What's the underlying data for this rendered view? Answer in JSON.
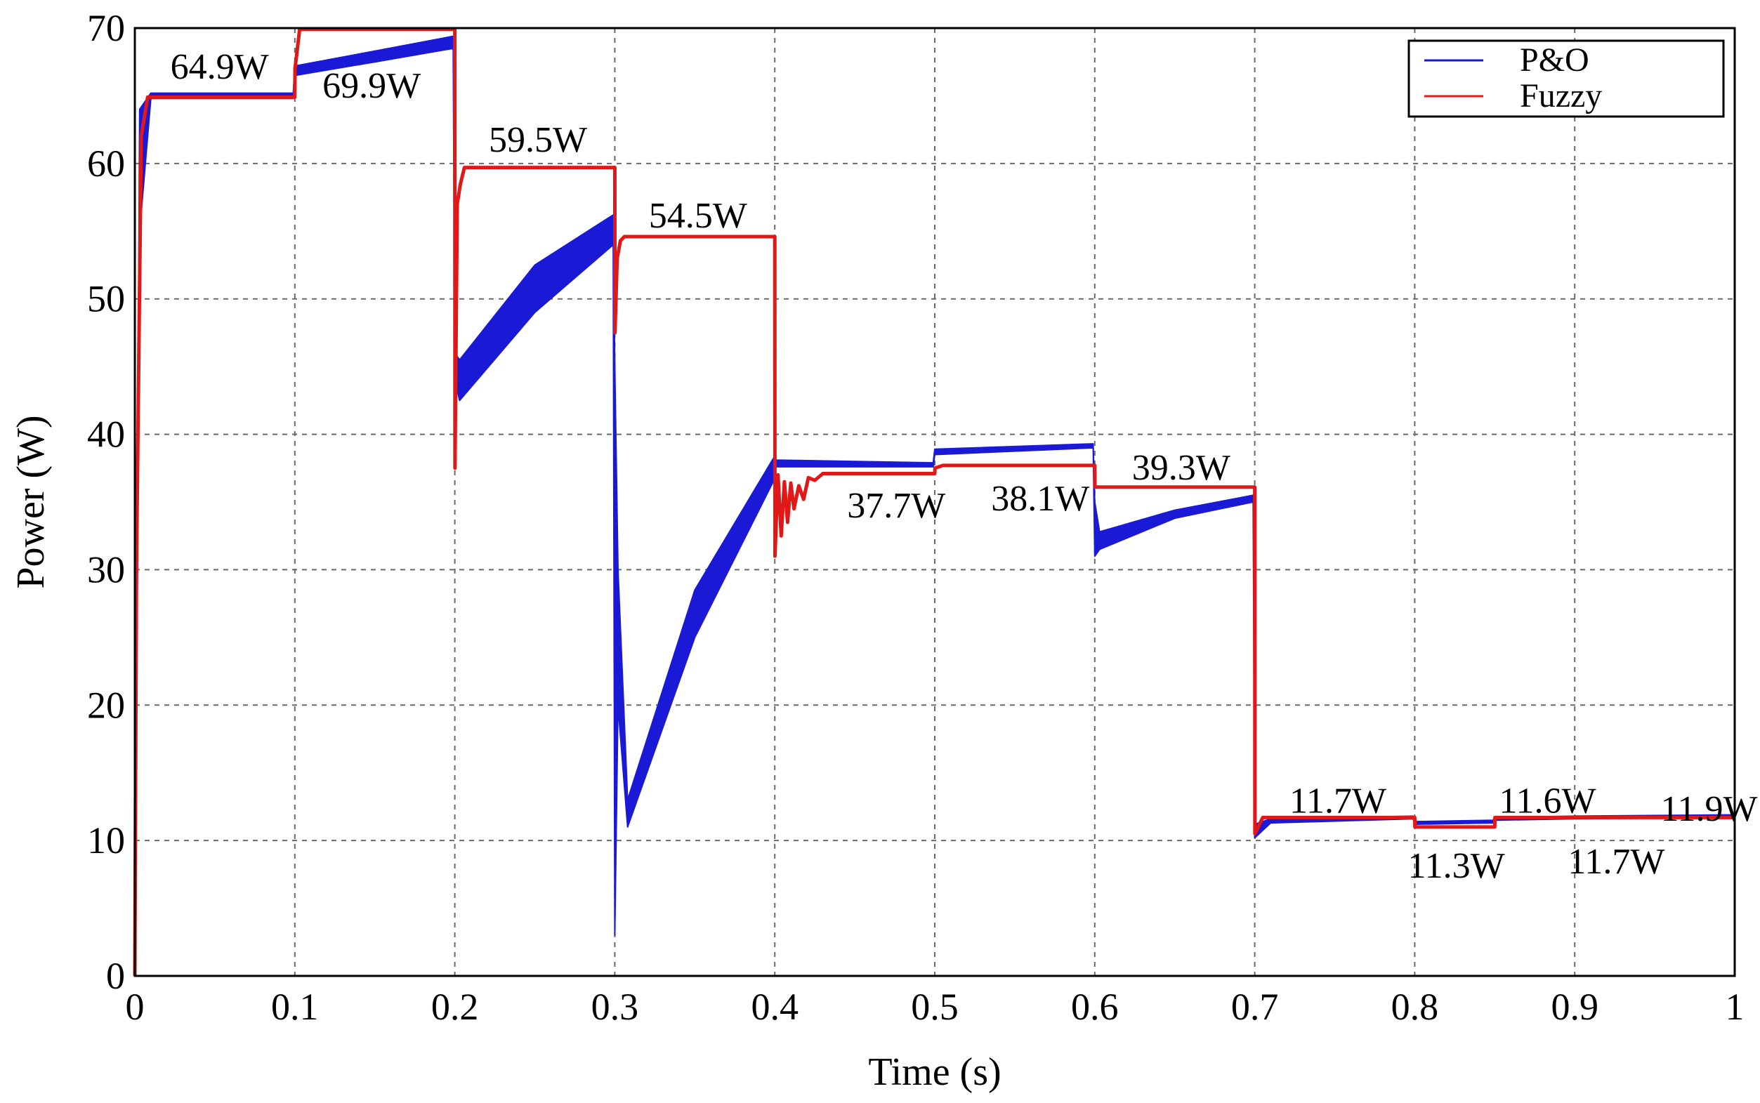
{
  "chart_data": {
    "type": "line",
    "title": "",
    "xlabel": "Time (s)",
    "ylabel": "Power (W)",
    "xlim": [
      0,
      1
    ],
    "ylim": [
      0,
      70
    ],
    "grid": true,
    "legend_position": "top-right",
    "x_ticks": [
      0,
      0.1,
      0.2,
      0.3,
      0.4,
      0.5,
      0.6,
      0.7,
      0.8,
      0.9,
      1
    ],
    "x_tick_labels": [
      "0",
      "0.1",
      "0.2",
      "0.3",
      "0.4",
      "0.5",
      "0.6",
      "0.7",
      "0.8",
      "0.9",
      "1"
    ],
    "y_ticks": [
      0,
      10,
      20,
      30,
      40,
      50,
      60,
      70
    ],
    "y_tick_labels": [
      "0",
      "10",
      "20",
      "30",
      "40",
      "50",
      "60",
      "70"
    ],
    "series": [
      {
        "name": "P&O",
        "color": "#1a1ad6",
        "band": [
          {
            "x": 0.0,
            "lo": 0,
            "hi": 0
          },
          {
            "x": 0.003,
            "lo": 55,
            "hi": 64
          },
          {
            "x": 0.01,
            "lo": 64.8,
            "hi": 65.2
          },
          {
            "x": 0.099,
            "lo": 64.8,
            "hi": 65.2
          },
          {
            "x": 0.1,
            "lo": 66.5,
            "hi": 67.2
          },
          {
            "x": 0.15,
            "lo": 67.5,
            "hi": 68.3
          },
          {
            "x": 0.199,
            "lo": 68.5,
            "hi": 69.4
          },
          {
            "x": 0.2,
            "lo": 44,
            "hi": 46
          },
          {
            "x": 0.203,
            "lo": 42.5,
            "hi": 45.5
          },
          {
            "x": 0.25,
            "lo": 49,
            "hi": 52.5
          },
          {
            "x": 0.299,
            "lo": 54,
            "hi": 56.2
          },
          {
            "x": 0.3,
            "lo": 3,
            "hi": 45
          },
          {
            "x": 0.302,
            "lo": 20,
            "hi": 30
          },
          {
            "x": 0.308,
            "lo": 11,
            "hi": 13
          },
          {
            "x": 0.35,
            "lo": 25,
            "hi": 28.5
          },
          {
            "x": 0.399,
            "lo": 36.5,
            "hi": 38.2
          },
          {
            "x": 0.4,
            "lo": 37.6,
            "hi": 38.1
          },
          {
            "x": 0.499,
            "lo": 37.6,
            "hi": 37.9
          },
          {
            "x": 0.5,
            "lo": 38.5,
            "hi": 38.9
          },
          {
            "x": 0.599,
            "lo": 39.0,
            "hi": 39.3
          },
          {
            "x": 0.6,
            "lo": 31,
            "hi": 35
          },
          {
            "x": 0.603,
            "lo": 31.5,
            "hi": 32.8
          },
          {
            "x": 0.65,
            "lo": 33.8,
            "hi": 34.4
          },
          {
            "x": 0.699,
            "lo": 35.0,
            "hi": 35.5
          },
          {
            "x": 0.7,
            "lo": 10.2,
            "hi": 11.2
          },
          {
            "x": 0.71,
            "lo": 11.3,
            "hi": 11.6
          },
          {
            "x": 0.799,
            "lo": 11.6,
            "hi": 11.8
          },
          {
            "x": 0.8,
            "lo": 11.2,
            "hi": 11.4
          },
          {
            "x": 0.849,
            "lo": 11.3,
            "hi": 11.5
          },
          {
            "x": 0.85,
            "lo": 11.5,
            "hi": 11.7
          },
          {
            "x": 0.9,
            "lo": 11.6,
            "hi": 11.8
          },
          {
            "x": 1.0,
            "lo": 11.7,
            "hi": 11.9
          }
        ]
      },
      {
        "name": "Fuzzy",
        "color": "#e01818",
        "x": [
          0.0,
          0.001,
          0.004,
          0.008,
          0.1,
          0.1001,
          0.103,
          0.2,
          0.2001,
          0.2015,
          0.2035,
          0.206,
          0.3,
          0.3001,
          0.3015,
          0.3035,
          0.306,
          0.4,
          0.4001,
          0.402,
          0.404,
          0.406,
          0.408,
          0.41,
          0.412,
          0.415,
          0.418,
          0.421,
          0.425,
          0.43,
          0.5,
          0.5001,
          0.505,
          0.6,
          0.6001,
          0.7,
          0.7001,
          0.705,
          0.8,
          0.8001,
          0.85,
          0.8501,
          1.0
        ],
        "y": [
          0,
          30,
          62,
          64.9,
          64.9,
          67,
          69.9,
          69.9,
          37.5,
          57,
          58.5,
          59.7,
          59.7,
          47.5,
          53,
          54.3,
          54.6,
          54.6,
          31,
          37,
          32.5,
          36.5,
          33.5,
          36.4,
          34.5,
          36.2,
          35.2,
          36.8,
          36.6,
          37.1,
          37.1,
          37.5,
          37.7,
          37.7,
          36.1,
          36.1,
          10.5,
          11.7,
          11.7,
          11.0,
          11.0,
          11.7,
          11.7
        ]
      }
    ],
    "annotations": [
      {
        "text": "64.9W",
        "x": 0.053,
        "y": 67.2
      },
      {
        "text": "69.9W",
        "x": 0.148,
        "y": 65.8
      },
      {
        "text": "59.5W",
        "x": 0.252,
        "y": 61.8
      },
      {
        "text": "54.5W",
        "x": 0.352,
        "y": 56.2
      },
      {
        "text": "37.7W",
        "x": 0.476,
        "y": 34.8
      },
      {
        "text": "38.1W",
        "x": 0.566,
        "y": 35.3
      },
      {
        "text": "39.3W",
        "x": 0.654,
        "y": 37.6
      },
      {
        "text": "11.7W",
        "x": 0.752,
        "y": 13.0
      },
      {
        "text": "11.3W",
        "x": 0.826,
        "y": 8.2
      },
      {
        "text": "11.6W",
        "x": 0.883,
        "y": 2.6,
        "y_offset_note": ""
      },
      {
        "text": "11.7W",
        "x": 0.926,
        "y": 8.5
      },
      {
        "text": "11.9W",
        "x": 0.984,
        "y": 12.4
      }
    ]
  }
}
